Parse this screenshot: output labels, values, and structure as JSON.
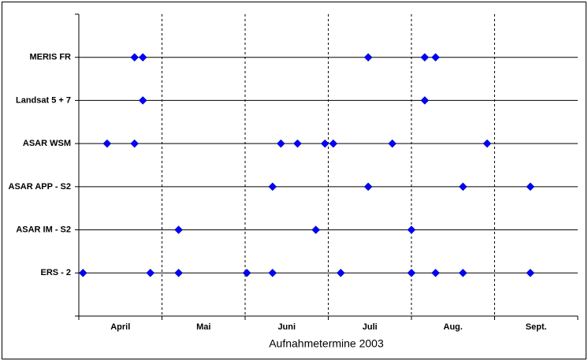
{
  "chart_data": {
    "type": "timeline",
    "x_label": "Aufnahmetermine 2003",
    "categories": [
      "April",
      "Mai",
      "Juni",
      "Juli",
      "Aug.",
      "Sept."
    ],
    "xlim": [
      0,
      6
    ],
    "color": "#0000ff",
    "rows": [
      {
        "label": "MERIS FR",
        "x": [
          0.67,
          0.77,
          3.48,
          4.16,
          4.29
        ]
      },
      {
        "label": "Landsat 5 + 7",
        "x": [
          0.77,
          4.16
        ]
      },
      {
        "label": "ASAR WSM",
        "x": [
          0.34,
          0.67,
          2.43,
          2.63,
          2.96,
          3.06,
          3.77,
          4.91
        ]
      },
      {
        "label": "ASAR APP - S2",
        "x": [
          2.33,
          3.48,
          4.62,
          5.43
        ]
      },
      {
        "label": "ASAR IM - S2",
        "x": [
          1.2,
          2.85,
          4.0
        ]
      },
      {
        "label": "ERS - 2",
        "x": [
          0.05,
          0.86,
          1.2,
          2.02,
          2.33,
          3.15,
          4.0,
          4.29,
          4.62,
          5.43
        ]
      }
    ]
  }
}
